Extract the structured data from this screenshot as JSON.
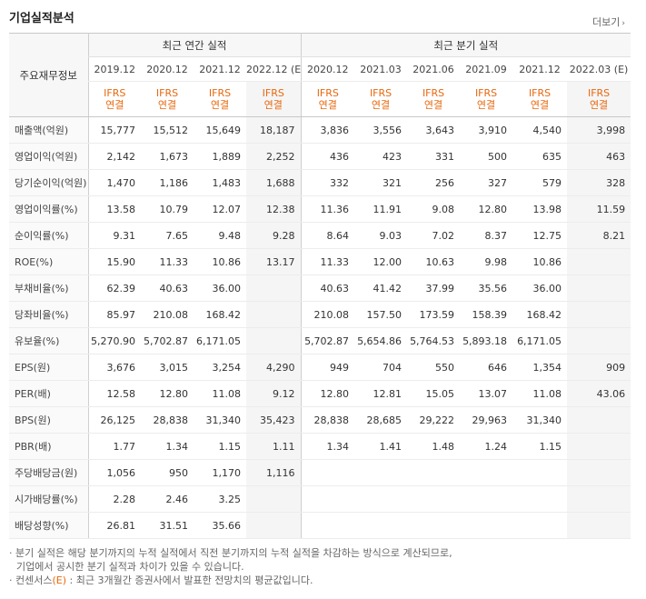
{
  "title": "기업실적분석",
  "more": "더보기",
  "row_header": "주요재무정보",
  "annual_header": "최근 연간 실적",
  "quarter_header": "최근 분기 실적",
  "annual_cols": [
    "2019.12",
    "2020.12",
    "2021.12",
    "2022.12 (E)"
  ],
  "quarter_cols": [
    "2020.12",
    "2021.03",
    "2021.06",
    "2021.09",
    "2021.12",
    "2022.03 (E)"
  ],
  "ifrs_top": "IFRS",
  "ifrs_bottom": "연결",
  "rows": [
    {
      "label": "매출액(억원)",
      "a": [
        "15,777",
        "15,512",
        "15,649",
        "18,187"
      ],
      "q": [
        "3,836",
        "3,556",
        "3,643",
        "3,910",
        "4,540",
        "3,998"
      ]
    },
    {
      "label": "영업이익(억원)",
      "a": [
        "2,142",
        "1,673",
        "1,889",
        "2,252"
      ],
      "q": [
        "436",
        "423",
        "331",
        "500",
        "635",
        "463"
      ]
    },
    {
      "label": "당기순이익(억원)",
      "a": [
        "1,470",
        "1,186",
        "1,483",
        "1,688"
      ],
      "q": [
        "332",
        "321",
        "256",
        "327",
        "579",
        "328"
      ]
    },
    {
      "label": "영업이익률(%)",
      "a": [
        "13.58",
        "10.79",
        "12.07",
        "12.38"
      ],
      "q": [
        "11.36",
        "11.91",
        "9.08",
        "12.80",
        "13.98",
        "11.59"
      ]
    },
    {
      "label": "순이익률(%)",
      "a": [
        "9.31",
        "7.65",
        "9.48",
        "9.28"
      ],
      "q": [
        "8.64",
        "9.03",
        "7.02",
        "8.37",
        "12.75",
        "8.21"
      ]
    },
    {
      "label": "ROE(%)",
      "a": [
        "15.90",
        "11.33",
        "10.86",
        "13.17"
      ],
      "q": [
        "11.33",
        "12.00",
        "10.63",
        "9.98",
        "10.86",
        ""
      ]
    },
    {
      "label": "부채비율(%)",
      "a": [
        "62.39",
        "40.63",
        "36.00",
        ""
      ],
      "q": [
        "40.63",
        "41.42",
        "37.99",
        "35.56",
        "36.00",
        ""
      ]
    },
    {
      "label": "당좌비율(%)",
      "a": [
        "85.97",
        "210.08",
        "168.42",
        ""
      ],
      "q": [
        "210.08",
        "157.50",
        "173.59",
        "158.39",
        "168.42",
        ""
      ]
    },
    {
      "label": "유보율(%)",
      "a": [
        "5,270.90",
        "5,702.87",
        "6,171.05",
        ""
      ],
      "q": [
        "5,702.87",
        "5,654.86",
        "5,764.53",
        "5,893.18",
        "6,171.05",
        ""
      ]
    },
    {
      "label": "EPS(원)",
      "a": [
        "3,676",
        "3,015",
        "3,254",
        "4,290"
      ],
      "q": [
        "949",
        "704",
        "550",
        "646",
        "1,354",
        "909"
      ]
    },
    {
      "label": "PER(배)",
      "a": [
        "12.58",
        "12.80",
        "11.08",
        "9.12"
      ],
      "q": [
        "12.80",
        "12.81",
        "15.05",
        "13.07",
        "11.08",
        "43.06"
      ]
    },
    {
      "label": "BPS(원)",
      "a": [
        "26,125",
        "28,838",
        "31,340",
        "35,423"
      ],
      "q": [
        "28,838",
        "28,685",
        "29,222",
        "29,963",
        "31,340",
        ""
      ]
    },
    {
      "label": "PBR(배)",
      "a": [
        "1.77",
        "1.34",
        "1.15",
        "1.11"
      ],
      "q": [
        "1.34",
        "1.41",
        "1.48",
        "1.24",
        "1.15",
        ""
      ]
    },
    {
      "label": "주당배당금(원)",
      "a": [
        "1,056",
        "950",
        "1,170",
        "1,116"
      ],
      "q": [
        "",
        "",
        "",
        "",
        "",
        ""
      ]
    },
    {
      "label": "시가배당률(%)",
      "a": [
        "2.28",
        "2.46",
        "3.25",
        ""
      ],
      "q": [
        "",
        "",
        "",
        "",
        "",
        ""
      ]
    },
    {
      "label": "배당성향(%)",
      "a": [
        "26.81",
        "31.51",
        "35.66",
        ""
      ],
      "q": [
        "",
        "",
        "",
        "",
        "",
        ""
      ]
    }
  ],
  "notes": {
    "line1": "· 분기 실적은 해당 분기까지의 누적 실적에서 직전 분기까지의 누적 실적을 차감하는 방식으로 계산되므로,",
    "line2": "  기업에서 공시한 분기 실적과 차이가 있을 수 있습니다.",
    "line3_pre": "· 컨센서스",
    "line3_e": "(E)",
    "line3_post": " : 최근 3개월간 증권사에서 발표한 전망치의 평균값입니다."
  }
}
